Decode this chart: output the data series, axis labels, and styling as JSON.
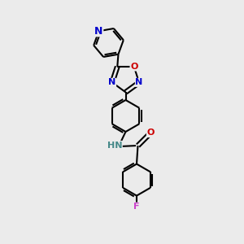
{
  "bg_color": "#ebebeb",
  "bond_color": "#000000",
  "bond_width": 1.5,
  "atom_colors": {
    "N": "#0000cc",
    "O": "#cc0000",
    "F": "#cc44cc",
    "H_color": "#448888",
    "C": "#000000"
  },
  "font_size": 8,
  "fig_size": [
    3.0,
    3.0
  ],
  "dpi": 100,
  "xlim": [
    0,
    10
  ],
  "ylim": [
    0,
    10
  ]
}
